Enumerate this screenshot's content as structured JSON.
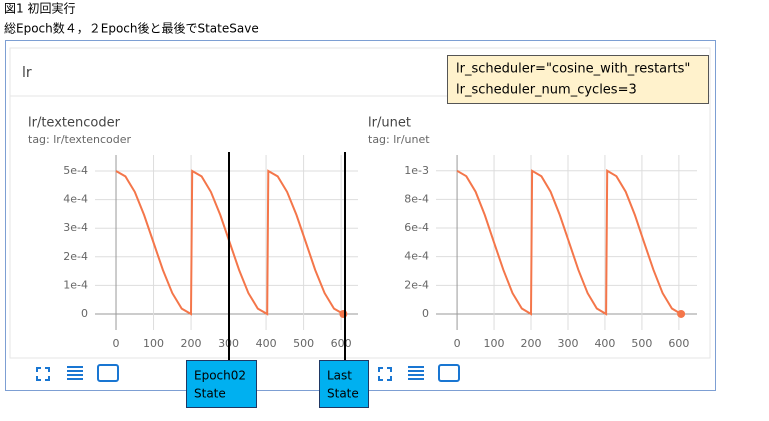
{
  "header": {
    "figure_label": "図1 初回実行",
    "caption": "総Epoch数４，２Epoch後と最後でStateSave"
  },
  "panel": {
    "title": "lr"
  },
  "note": {
    "lines": [
      "lr_scheduler=\"cosine_with_restarts\"",
      "lr_scheduler_num_cycles=3"
    ]
  },
  "annotations": [
    {
      "lines": [
        "Epoch02",
        "State"
      ]
    },
    {
      "lines": [
        "Last",
        "State"
      ]
    }
  ],
  "chart_data": [
    {
      "type": "line",
      "title": "lr/textencoder",
      "subtitle": "tag: lr/textencoder",
      "color": "#f4764a",
      "grid": true,
      "x": [
        0,
        25,
        50,
        75,
        100,
        125,
        150,
        175,
        200,
        203,
        228,
        253,
        278,
        303,
        328,
        353,
        378,
        403,
        406,
        431,
        456,
        481,
        506,
        531,
        556,
        581,
        606
      ],
      "values": [
        0.0005,
        0.000481,
        0.000427,
        0.000346,
        0.00025,
        0.000154,
        7.32e-05,
        1.9e-05,
        0,
        0.0005,
        0.000481,
        0.000427,
        0.000346,
        0.00025,
        0.000154,
        7.32e-05,
        1.9e-05,
        0,
        0.0005,
        0.000481,
        0.000427,
        0.000346,
        0.00025,
        0.000154,
        7.32e-05,
        1.9e-05,
        0
      ],
      "xlim": [
        -56,
        645
      ],
      "ylim": [
        -5.6e-05,
        0.000556
      ],
      "xticks": [
        0,
        100,
        200,
        300,
        400,
        500,
        600
      ],
      "yticks": [
        0,
        {
          "value": 0.0001,
          "label": "1e-4"
        },
        {
          "value": 0.0002,
          "label": "2e-4"
        },
        {
          "value": 0.0003,
          "label": "3e-4"
        },
        {
          "value": 0.0004,
          "label": "4e-4"
        },
        {
          "value": 0.0005,
          "label": "5e-4"
        }
      ]
    },
    {
      "type": "line",
      "title": "lr/unet",
      "subtitle": "tag: lr/unet",
      "color": "#f4764a",
      "grid": true,
      "x": [
        0,
        25,
        50,
        75,
        100,
        125,
        150,
        175,
        200,
        203,
        228,
        253,
        278,
        303,
        328,
        353,
        378,
        403,
        406,
        431,
        456,
        481,
        506,
        531,
        556,
        581,
        606
      ],
      "values": [
        0.001,
        0.000962,
        0.000854,
        0.000691,
        0.0005,
        0.000309,
        0.000146,
        3.81e-05,
        0,
        0.001,
        0.000962,
        0.000854,
        0.000691,
        0.0005,
        0.000309,
        0.000146,
        3.81e-05,
        0,
        0.001,
        0.000962,
        0.000854,
        0.000691,
        0.0005,
        0.000309,
        0.000146,
        3.81e-05,
        0
      ],
      "xlim": [
        -57,
        649
      ],
      "ylim": [
        -0.000112,
        0.00111
      ],
      "xticks": [
        0,
        100,
        200,
        300,
        400,
        500,
        600
      ],
      "yticks": [
        0,
        {
          "value": 0.0002,
          "label": "2e-4"
        },
        {
          "value": 0.0004,
          "label": "4e-4"
        },
        {
          "value": 0.0006,
          "label": "6e-4"
        },
        {
          "value": 0.0008,
          "label": "8e-4"
        },
        {
          "value": 0.001,
          "label": "1e-3"
        }
      ]
    }
  ]
}
